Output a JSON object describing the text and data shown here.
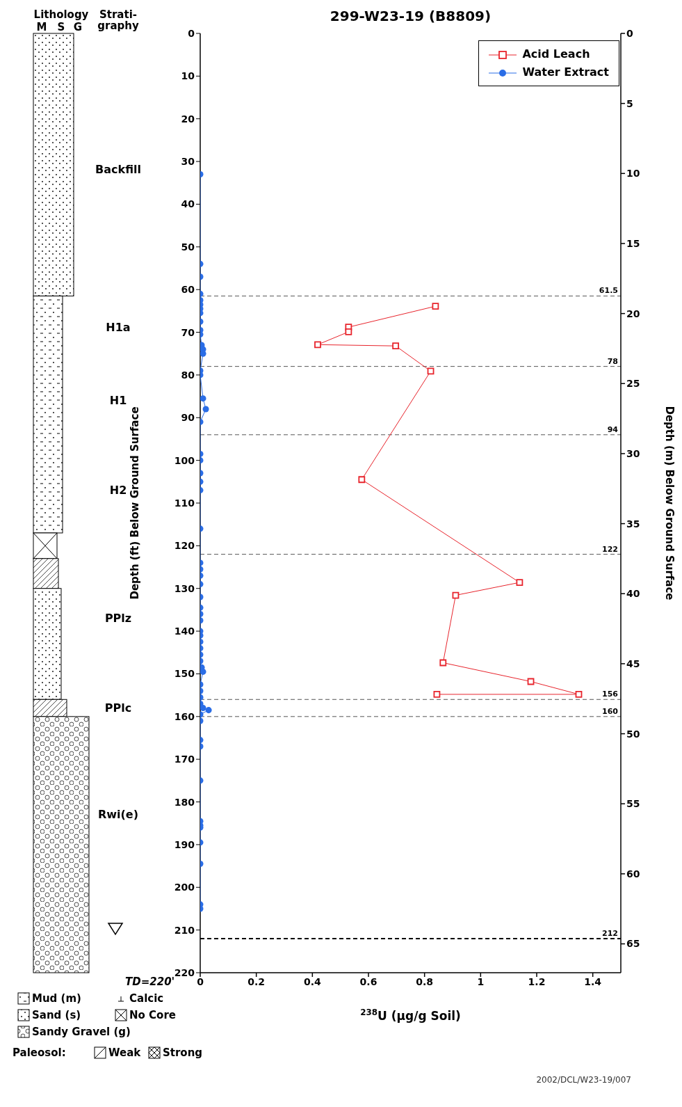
{
  "chart_data": {
    "type": "line",
    "title": "299-W23-19 (B8809)",
    "xlabel": "$^{238}$U (µg/g Soil)",
    "ylabel": "Depth (ft) Below Ground Surface",
    "y2label": "Depth (m) Below Ground Surface",
    "xlim": [
      0,
      1.5
    ],
    "xticks": [
      0,
      0.2,
      0.4,
      0.6,
      0.8,
      1,
      1.2,
      1.4
    ],
    "ylim": [
      220,
      0
    ],
    "yticks": [
      0,
      10,
      20,
      30,
      40,
      50,
      60,
      70,
      80,
      90,
      100,
      110,
      120,
      130,
      140,
      150,
      160,
      170,
      180,
      190,
      200,
      210,
      220
    ],
    "y2lim": [
      67.06,
      0
    ],
    "y2ticks": [
      0,
      5,
      10,
      15,
      20,
      25,
      30,
      35,
      40,
      45,
      50,
      55,
      60,
      65
    ],
    "legend": "top right",
    "line_style": "solid",
    "series": [
      {
        "name": "Acid Leach",
        "marker": "square",
        "color": "#e8242c",
        "x": [
          0.839,
          0.529,
          0.529,
          0.419,
          0.697,
          0.822,
          0.576,
          1.139,
          0.911,
          0.866,
          1.179,
          1.35,
          0.844
        ],
        "values": [
          63.9,
          68.8,
          69.9,
          72.9,
          73.2,
          79.1,
          104.5,
          128.6,
          131.6,
          147.4,
          151.8,
          154.8,
          154.8
        ]
      },
      {
        "name": "Water Extract",
        "marker": "circle",
        "color": "#2a6de6",
        "x": [
          0,
          0,
          0,
          0,
          0,
          0,
          0,
          0,
          0,
          0,
          0,
          0.005,
          0.01,
          0.01,
          0,
          0,
          0.01,
          0.02,
          0,
          0,
          0,
          0,
          0,
          0,
          0,
          0,
          0,
          0,
          0,
          0,
          0,
          0,
          0,
          0,
          0,
          0,
          0,
          0,
          0,
          0.005,
          0.01,
          0,
          0,
          0,
          0,
          0.01,
          0.03,
          0,
          0,
          0,
          0,
          0,
          0,
          0,
          0,
          0,
          0,
          0,
          0
        ],
        "values": [
          33,
          54,
          57,
          61,
          62.5,
          63.5,
          64.5,
          65.5,
          67.5,
          69.5,
          70.5,
          73,
          74,
          75,
          79,
          80,
          85.5,
          88,
          91,
          98.5,
          100,
          103,
          105,
          107,
          116,
          124,
          125.5,
          127,
          129,
          132,
          134.5,
          136,
          137.5,
          140,
          141,
          142.5,
          144,
          145.5,
          147,
          148.5,
          149.5,
          152.5,
          154,
          155.5,
          157,
          158,
          158.5,
          159.5,
          161,
          165.5,
          167,
          175,
          184.5,
          185.5,
          186,
          189.5,
          194.5,
          204,
          205
        ]
      }
    ],
    "ref_lines": [
      {
        "axis": "y",
        "value": 61.5,
        "label": "61.5",
        "color": "#555555",
        "line_style": "dashed"
      },
      {
        "axis": "y",
        "value": 78,
        "label": "78",
        "color": "#555555",
        "line_style": "dashed"
      },
      {
        "axis": "y",
        "value": 94,
        "label": "94",
        "color": "#555555",
        "line_style": "dashed"
      },
      {
        "axis": "y",
        "value": 122,
        "label": "122",
        "color": "#555555",
        "line_style": "dashed"
      },
      {
        "axis": "y",
        "value": 156,
        "label": "156",
        "color": "#555555",
        "line_style": "dashed"
      },
      {
        "axis": "y",
        "value": 160,
        "label": "160",
        "color": "#555555",
        "line_style": "dashed"
      },
      {
        "axis": "y",
        "value": 212,
        "label": "212",
        "color": "#000000",
        "line_style": "dashed"
      }
    ],
    "annotations": [
      "Lithology",
      "M",
      "S",
      "G",
      "Strati-\ngraphy",
      "Backfill",
      "H1a",
      "H1",
      "H2",
      "PPlz",
      "PPlc",
      "Rwi(e)",
      "TD=220'",
      "Mud (m)",
      "Sand (s)",
      "Sandy Gravel (g)",
      "Calcic",
      "No Core",
      "Paleosol:",
      "Weak",
      "Strong",
      "2002/DCL/W23-19/007"
    ]
  }
}
